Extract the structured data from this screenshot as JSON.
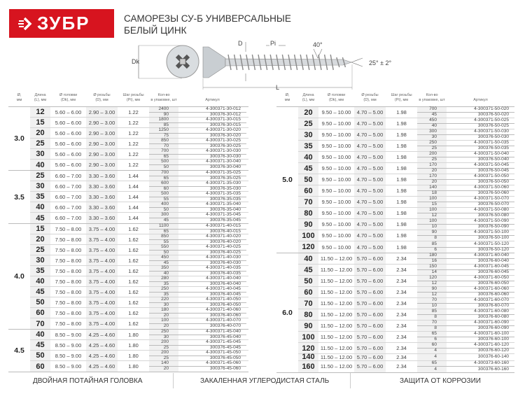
{
  "brand": {
    "logo_text": "ЗУБР",
    "color": "#d7141f",
    "icon": "arrow-right-icon"
  },
  "title": {
    "line1": "САМОРЕЗЫ СУ-Б УНИВЕРСАЛЬНЫЕ",
    "line2": "БЕЛЫЙ ЦИНК"
  },
  "diagram": {
    "labels": {
      "dk": "Dk",
      "d": "D",
      "pi": "Pi",
      "angle_thread": "40°",
      "angle_tip": "25° ± 2°",
      "l": "L"
    }
  },
  "headers": [
    "Ø,\nмм",
    "Длина\n(L), мм",
    "Ø головки\n(Dk), мм",
    "Ø резьбы\n(D), мм",
    "Шаг резьбы\n(Pi), мм",
    "Кол-во\nв упаковке, шт",
    "Артикул"
  ],
  "tables": [
    {
      "groups": [
        {
          "diameter": "3.0",
          "head": "5.60 – 6.00",
          "thread": "2.90 – 3.00",
          "pitch": "1.22",
          "rows": [
            {
              "length": "12",
              "packs": [
                [
                  "2400",
                  "4-300371-30-012"
                ],
                [
                  "90",
                  "300376-30-012"
                ]
              ]
            },
            {
              "length": "15",
              "packs": [
                [
                  "1800",
                  "4-300371-30-015"
                ],
                [
                  "85",
                  "300376-30-015"
                ]
              ]
            },
            {
              "length": "20",
              "packs": [
                [
                  "1250",
                  "4-300371-30-020"
                ],
                [
                  "75",
                  "300376-30-020"
                ]
              ]
            },
            {
              "length": "25",
              "packs": [
                [
                  "850",
                  "4-300371-30-025"
                ],
                [
                  "70",
                  "300376-30-025"
                ]
              ]
            },
            {
              "length": "30",
              "packs": [
                [
                  "700",
                  "4-300371-30-030"
                ],
                [
                  "65",
                  "300376-30-030"
                ]
              ]
            },
            {
              "length": "40",
              "packs": [
                [
                  "500",
                  "4-300371-30-040"
                ],
                [
                  "50",
                  "300376-30-040"
                ]
              ]
            }
          ]
        },
        {
          "diameter": "3.5",
          "head": "6.60 – 7.00",
          "thread": "3.30 – 3.60",
          "pitch": "1.44",
          "rows": [
            {
              "length": "25",
              "packs": [
                [
                  "700",
                  "4-300371-35-025"
                ],
                [
                  "65",
                  "300376-35-025"
                ]
              ]
            },
            {
              "length": "30",
              "packs": [
                [
                  "600",
                  "4-300371-35-030"
                ],
                [
                  "60",
                  "300376-35-030"
                ]
              ]
            },
            {
              "length": "35",
              "packs": [
                [
                  "500",
                  "4-300371-35-035"
                ],
                [
                  "55",
                  "300376-35-035"
                ]
              ]
            },
            {
              "length": "40",
              "packs": [
                [
                  "400",
                  "4-300371-35-040"
                ],
                [
                  "50",
                  "300376-35-040"
                ]
              ]
            },
            {
              "length": "45",
              "packs": [
                [
                  "300",
                  "4-300371-35-045"
                ],
                [
                  "45",
                  "300376-35-045"
                ]
              ]
            }
          ]
        },
        {
          "diameter": "4.0",
          "head": "7.50 – 8.00",
          "thread": "3.75 – 4.00",
          "pitch": "1.62",
          "rows": [
            {
              "length": "15",
              "packs": [
                [
                  "1100",
                  "4-300371-40-015"
                ],
                [
                  "65",
                  "300376-40-015"
                ]
              ]
            },
            {
              "length": "20",
              "packs": [
                [
                  "850",
                  "4-300371-40-020"
                ],
                [
                  "55",
                  "300376-40-020"
                ]
              ]
            },
            {
              "length": "25",
              "packs": [
                [
                  "550",
                  "4-300371-40-025"
                ],
                [
                  "50",
                  "300376-40-025"
                ]
              ]
            },
            {
              "length": "30",
              "packs": [
                [
                  "450",
                  "4-300371-40-030"
                ],
                [
                  "45",
                  "300376-40-030"
                ]
              ]
            },
            {
              "length": "35",
              "packs": [
                [
                  "350",
                  "4-300371-40-035"
                ],
                [
                  "40",
                  "300376-40-035"
                ]
              ]
            },
            {
              "length": "40",
              "packs": [
                [
                  "280",
                  "4-300371-40-040"
                ],
                [
                  "35",
                  "300376-40-040"
                ]
              ]
            },
            {
              "length": "45",
              "packs": [
                [
                  "250",
                  "4-300371-40-045"
                ],
                [
                  "35",
                  "300376-40-045"
                ]
              ]
            },
            {
              "length": "50",
              "packs": [
                [
                  "220",
                  "4-300371-40-050"
                ],
                [
                  "30",
                  "300376-40-050"
                ]
              ]
            },
            {
              "length": "60",
              "packs": [
                [
                  "180",
                  "4-300371-40-060"
                ],
                [
                  "20",
                  "300376-40-060"
                ]
              ]
            },
            {
              "length": "70",
              "packs": [
                [
                  "100",
                  "4-300371-40-070"
                ],
                [
                  "20",
                  "300376-40-070"
                ]
              ]
            }
          ]
        },
        {
          "diameter": "4.5",
          "head": "8.50 – 9.00",
          "thread": "4.25 – 4.60",
          "pitch": "1.80",
          "rows": [
            {
              "length": "40",
              "packs": [
                [
                  "250",
                  "4-300371-45-040"
                ],
                [
                  "30",
                  "300376-45-040"
                ]
              ]
            },
            {
              "length": "45",
              "packs": [
                [
                  "200",
                  "4-300371-45-045"
                ],
                [
                  "25",
                  "300376-45-045"
                ]
              ]
            },
            {
              "length": "50",
              "packs": [
                [
                  "200",
                  "4-300371-45-050"
                ],
                [
                  "25",
                  "300376-45-050"
                ]
              ]
            },
            {
              "length": "60",
              "packs": [
                [
                  "140",
                  "4-300371-45-060"
                ],
                [
                  "20",
                  "300376-45-060"
                ]
              ]
            }
          ]
        }
      ]
    },
    {
      "groups": [
        {
          "diameter": "5.0",
          "head": "9.50 – 10.00",
          "thread": "4.70 – 5.00",
          "pitch": "1.98",
          "rows": [
            {
              "length": "20",
              "packs": [
                [
                  "700",
                  "4-300371-50-020"
                ],
                [
                  "45",
                  "300376-50-020"
                ]
              ]
            },
            {
              "length": "25",
              "packs": [
                [
                  "450",
                  "4-300371-50-025"
                ],
                [
                  "40",
                  "300376-50-025"
                ]
              ]
            },
            {
              "length": "30",
              "packs": [
                [
                  "300",
                  "4-300371-50-030"
                ],
                [
                  "30",
                  "300376-50-030"
                ]
              ]
            },
            {
              "length": "35",
              "packs": [
                [
                  "250",
                  "4-300371-50-035"
                ],
                [
                  "25",
                  "300376-50-035"
                ]
              ]
            },
            {
              "length": "40",
              "packs": [
                [
                  "200",
                  "4-300371-50-040"
                ],
                [
                  "25",
                  "300376-50-040"
                ]
              ]
            },
            {
              "length": "45",
              "packs": [
                [
                  "170",
                  "4-300371-50-045"
                ],
                [
                  "20",
                  "300376-50-045"
                ]
              ]
            },
            {
              "length": "50",
              "packs": [
                [
                  "170",
                  "4-300371-50-050"
                ],
                [
                  "20",
                  "300376-50-050"
                ]
              ]
            },
            {
              "length": "60",
              "packs": [
                [
                  "140",
                  "4-300371-50-060"
                ],
                [
                  "18",
                  "300376-50-060"
                ]
              ]
            },
            {
              "length": "70",
              "packs": [
                [
                  "100",
                  "4-300371-50-070"
                ],
                [
                  "15",
                  "300376-50-070"
                ]
              ]
            },
            {
              "length": "80",
              "packs": [
                [
                  "100",
                  "4-300371-50-080"
                ],
                [
                  "12",
                  "300376-50-080"
                ]
              ]
            },
            {
              "length": "90",
              "packs": [
                [
                  "100",
                  "4-300371-50-090"
                ],
                [
                  "10",
                  "300376-50-090"
                ]
              ]
            },
            {
              "length": "100",
              "packs": [
                [
                  "90",
                  "4-300371-50-100"
                ],
                [
                  "8",
                  "300376-50-100"
                ]
              ]
            },
            {
              "length": "120",
              "packs": [
                [
                  "85",
                  "4-300371-50-120"
                ],
                [
                  "6",
                  "300376-50-120"
                ]
              ]
            }
          ]
        },
        {
          "diameter": "6.0",
          "head": "11.50 – 12.00",
          "thread": "5.70 – 6.00",
          "pitch": "2.34",
          "rows": [
            {
              "length": "40",
              "packs": [
                [
                  "180",
                  "4-300371-60-040"
                ],
                [
                  "16",
                  "300376-60-040"
                ]
              ]
            },
            {
              "length": "45",
              "packs": [
                [
                  "150",
                  "4-300371-60-045"
                ],
                [
                  "14",
                  "300376-60-045"
                ]
              ]
            },
            {
              "length": "50",
              "packs": [
                [
                  "120",
                  "4-300371-60-050"
                ],
                [
                  "12",
                  "300376-60-050"
                ]
              ]
            },
            {
              "length": "60",
              "packs": [
                [
                  "90",
                  "4-300371-60-060"
                ],
                [
                  "12",
                  "300376-60-060"
                ]
              ]
            },
            {
              "length": "70",
              "packs": [
                [
                  "70",
                  "4-300371-60-070"
                ],
                [
                  "10",
                  "300376-60-070"
                ]
              ]
            },
            {
              "length": "80",
              "packs": [
                [
                  "85",
                  "4-300371-60-080"
                ],
                [
                  "8",
                  "300376-60-080"
                ]
              ]
            },
            {
              "length": "90",
              "packs": [
                [
                  "70",
                  "4-300371-60-090"
                ],
                [
                  "8",
                  "300376-60-090"
                ]
              ]
            },
            {
              "length": "100",
              "packs": [
                [
                  "65",
                  "4-300371-60-100"
                ],
                [
                  "6",
                  "300376-60-100"
                ]
              ]
            },
            {
              "length": "120",
              "packs": [
                [
                  "60",
                  "4-300371-60-120"
                ],
                [
                  "4",
                  "300376-60-120"
                ]
              ]
            },
            {
              "length": "140",
              "packs": [
                [
                  "4",
                  "300376-60-140"
                ]
              ]
            },
            {
              "length": "160",
              "packs": [
                [
                  "65",
                  "4-300373-60-160"
                ],
                [
                  "4",
                  "300376-60-160"
                ]
              ]
            }
          ]
        }
      ]
    }
  ],
  "footer": [
    "ДВОЙНАЯ ПОТАЙНАЯ ГОЛОВКА",
    "ЗАКАЛЕННАЯ УГЛЕРОДИСТАЯ СТАЛЬ",
    "ЗАЩИТА ОТ КОРРОЗИИ"
  ]
}
